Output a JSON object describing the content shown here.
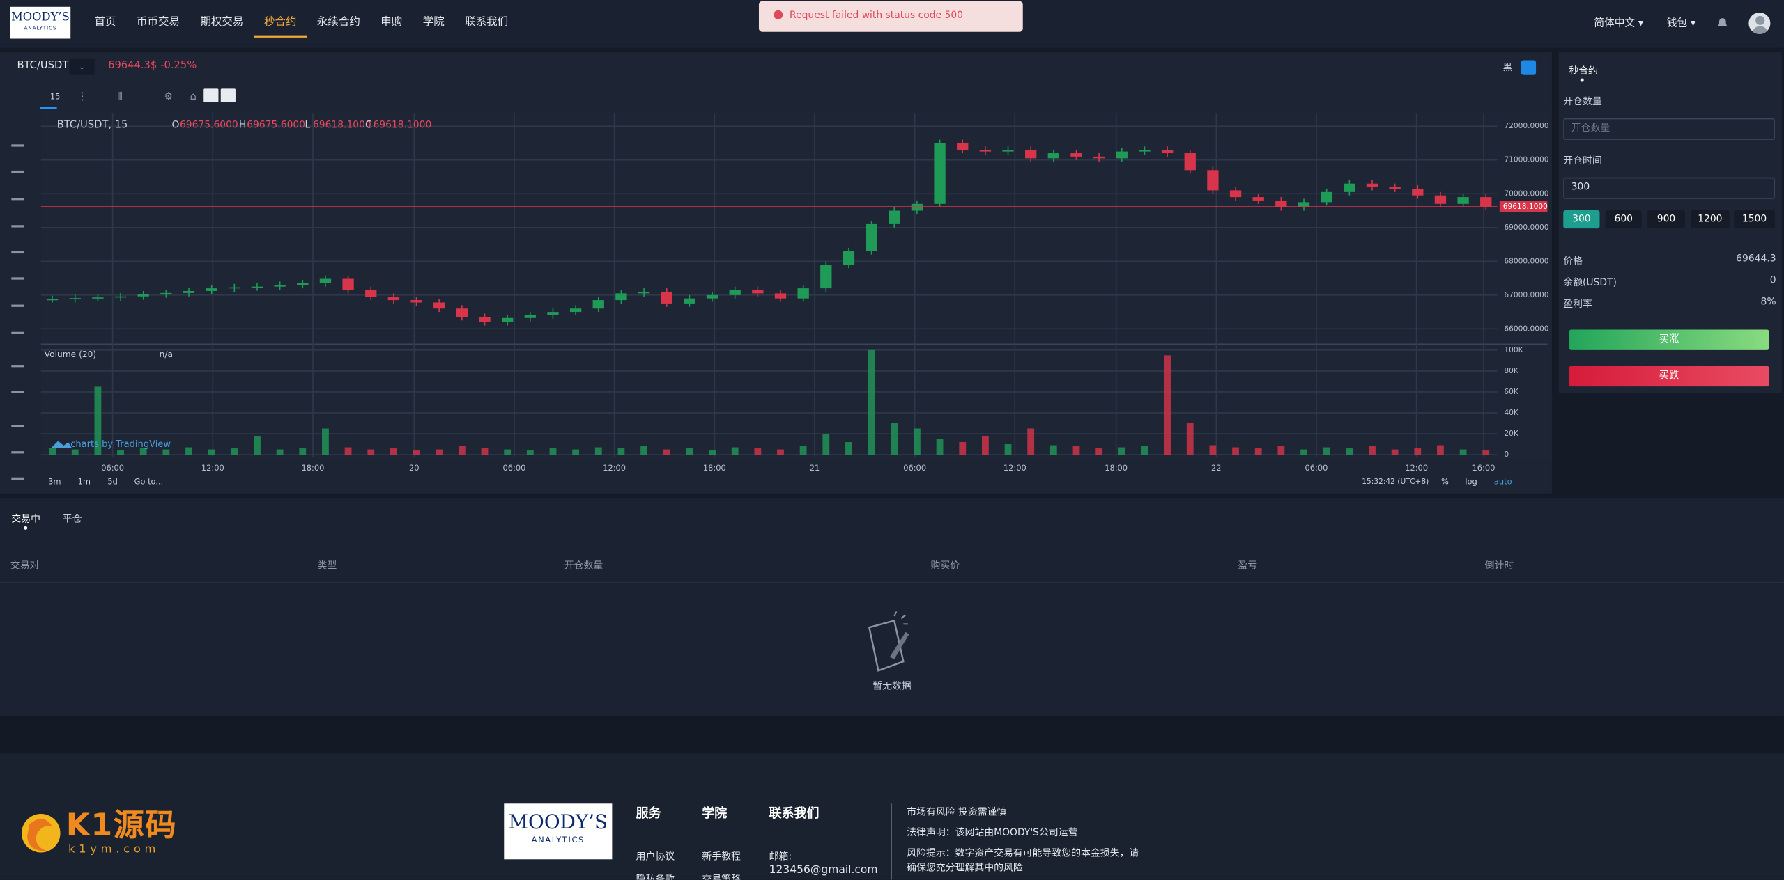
{
  "logo": {
    "line1": "MOODY’S",
    "line2": "ANALYTICS"
  },
  "nav": {
    "items": [
      "首页",
      "币币交易",
      "期权交易",
      "秒合约",
      "永续合约",
      "申购",
      "学院",
      "联系我们"
    ],
    "active": 3,
    "language": "简体中文",
    "wallet": "钱包"
  },
  "toast": "Request failed with status code 500",
  "market": {
    "pair": "BTC/USDT",
    "price": "69644.3$",
    "change": "-0.25%",
    "theme": "黑"
  },
  "chart_data": {
    "type": "candlestick",
    "interval": "15",
    "ohlc": [
      {
        "key": "O",
        "value": "69675.6000"
      },
      {
        "key": "H",
        "value": "69675.6000"
      },
      {
        "key": "L",
        "value": "69618.1000"
      },
      {
        "key": "C",
        "value": "69618.1000"
      }
    ],
    "volume_value": "n/a",
    "brand": "charts by TradingView",
    "ranges": [
      "3m",
      "1m",
      "5d"
    ],
    "goto": "Go to...",
    "clock": "15:32:42 (UTC+8)",
    "scale_buttons": [
      "%",
      "log",
      "auto"
    ],
    "x_labels": [
      "06:00",
      "12:00",
      "18:00",
      "20",
      "06:00",
      "12:00",
      "18:00",
      "21",
      "06:00",
      "12:00",
      "18:00",
      "22",
      "06:00",
      "12:00",
      "16:00"
    ],
    "up_color": "#1f9a57",
    "down_color": "#d8344a",
    "series": [
      {
        "name": "BTC/USDT, 15",
        "values": [
          66880,
          66910,
          66930,
          66960,
          67020,
          67060,
          67120,
          67200,
          67230,
          67250,
          67300,
          67350,
          67480,
          67150,
          66950,
          66850,
          66780,
          66600,
          66350,
          66200,
          66320,
          66400,
          66500,
          66600,
          66850,
          67050,
          67100,
          66750,
          66900,
          67000,
          67150,
          67050,
          66900,
          67200,
          67900,
          68300,
          69100,
          69500,
          69700,
          71500,
          71300,
          71250,
          71300,
          71050,
          71200,
          71100,
          71050,
          71250,
          71300,
          71200,
          70700,
          70100,
          69900,
          69800,
          69600,
          69750,
          70050,
          70300,
          70200,
          70150,
          69950,
          69700,
          69900,
          69618.1
        ]
      },
      {
        "name": "Volume (20)",
        "axis": "y2",
        "values": [
          6000,
          5000,
          65000,
          4000,
          6000,
          5000,
          7000,
          5000,
          6000,
          18000,
          5000,
          6000,
          25000,
          7000,
          5000,
          6000,
          4000,
          5000,
          8000,
          6000,
          5000,
          4000,
          6000,
          5000,
          7000,
          6000,
          8000,
          5000,
          6000,
          4000,
          7000,
          6000,
          5000,
          8000,
          20000,
          12000,
          100000,
          30000,
          25000,
          15000,
          12000,
          18000,
          10000,
          25000,
          9000,
          8000,
          6000,
          7000,
          8000,
          95000,
          30000,
          9000,
          7000,
          6000,
          8000,
          5000,
          7000,
          6000,
          8000,
          5000,
          6000,
          9000,
          5000,
          4000
        ]
      }
    ],
    "last_price": {
      "value": 69618.1,
      "label": "69618.1000"
    },
    "ylim": [
      65640,
      72370
    ],
    "yticks": [
      {
        "value": 72000,
        "label": "72000.0000"
      },
      {
        "value": 71000,
        "label": "71000.0000"
      },
      {
        "value": 70000,
        "label": "70000.0000"
      },
      {
        "value": 69000,
        "label": "69000.0000"
      },
      {
        "value": 68000,
        "label": "68000.0000"
      },
      {
        "value": 67000,
        "label": "67000.0000"
      },
      {
        "value": 66000,
        "label": "66000.0000"
      }
    ],
    "y2lim": [
      0,
      100000
    ],
    "y2ticks": [
      {
        "value": 100000,
        "label": "100K"
      },
      {
        "value": 80000,
        "label": "80K"
      },
      {
        "value": 60000,
        "label": "60K"
      },
      {
        "value": 40000,
        "label": "40K"
      },
      {
        "value": 20000,
        "label": "20K"
      },
      0
    ],
    "grid": true
  },
  "order_panel": {
    "tab": "秒合约",
    "qty_label": "开仓数量",
    "qty_placeholder": "开仓数量",
    "time_label": "开仓时间",
    "time_value": "300",
    "durations": [
      300,
      600,
      900,
      1200,
      1500
    ],
    "active_duration": 0,
    "rows": [
      {
        "label": "价格",
        "value": "69644.3"
      },
      {
        "label": "余额(USDT)",
        "value": "0"
      },
      {
        "label": "盈利率",
        "value": "8%"
      }
    ],
    "buy_up": "买涨",
    "buy_down": "买跌"
  },
  "orders": {
    "tabs": [
      "交易中",
      "平仓"
    ],
    "active_tab": 0,
    "columns": [
      "交易对",
      "类型",
      "开仓数量",
      "购买价",
      "盈亏",
      "倒计时"
    ],
    "empty": "暂无数据"
  },
  "footer": {
    "watermark": {
      "name": "K1源码",
      "site": "k1ym.com"
    },
    "columns": [
      {
        "title": "服务",
        "items": [
          "用户协议",
          "隐私条款"
        ]
      },
      {
        "title": "学院",
        "items": [
          "新手教程",
          "交易策略"
        ]
      },
      {
        "title": "联系我们",
        "items": [
          "邮箱:",
          "123456@gmail.com"
        ]
      }
    ],
    "notes": [
      "市场有风险 投资需谨慎",
      "法律声明：该网站由MOODY'S公司运营",
      "风险提示：数字资产交易有可能导致您的本金损失，请确保您充分理解其中的风险"
    ]
  }
}
